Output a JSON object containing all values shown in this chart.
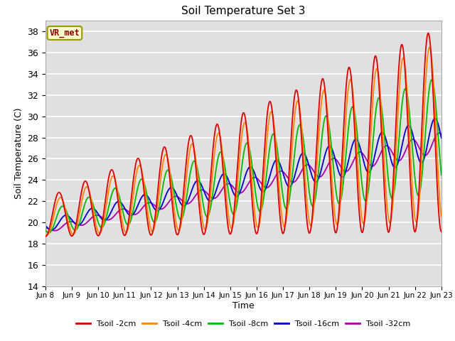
{
  "title": "Soil Temperature Set 3",
  "xlabel": "Time",
  "ylabel": "Soil Temperature (C)",
  "ylim": [
    14,
    39
  ],
  "yticks": [
    14,
    16,
    18,
    20,
    22,
    24,
    26,
    28,
    30,
    32,
    34,
    36,
    38
  ],
  "bg_color": "#e0e0e0",
  "fig_color": "#ffffff",
  "annotation_text": "VR_met",
  "annotation_bg": "#ffffcc",
  "annotation_border": "#999900",
  "annotation_text_color": "#8B0000",
  "series_colors": [
    "#dd0000",
    "#ff8800",
    "#00bb00",
    "#0000cc",
    "#aa00aa"
  ],
  "series_labels": [
    "Tsoil -2cm",
    "Tsoil -4cm",
    "Tsoil -8cm",
    "Tsoil -16cm",
    "Tsoil -32cm"
  ],
  "n_points": 720,
  "x_start": 8.0,
  "x_end": 23.0,
  "xtick_positions": [
    8,
    9,
    10,
    11,
    12,
    13,
    14,
    15,
    16,
    17,
    18,
    19,
    20,
    21,
    22,
    23
  ],
  "xtick_labels": [
    "Jun 8",
    "Jun 9",
    "Jun 10",
    "Jun 11",
    "Jun 12",
    "Jun 13",
    "Jun 14",
    "Jun 15",
    "Jun 16",
    "Jun 17",
    "Jun 18",
    "Jun 19",
    "Jun 20",
    "Jun 21",
    "Jun 22",
    "Jun 23"
  ]
}
